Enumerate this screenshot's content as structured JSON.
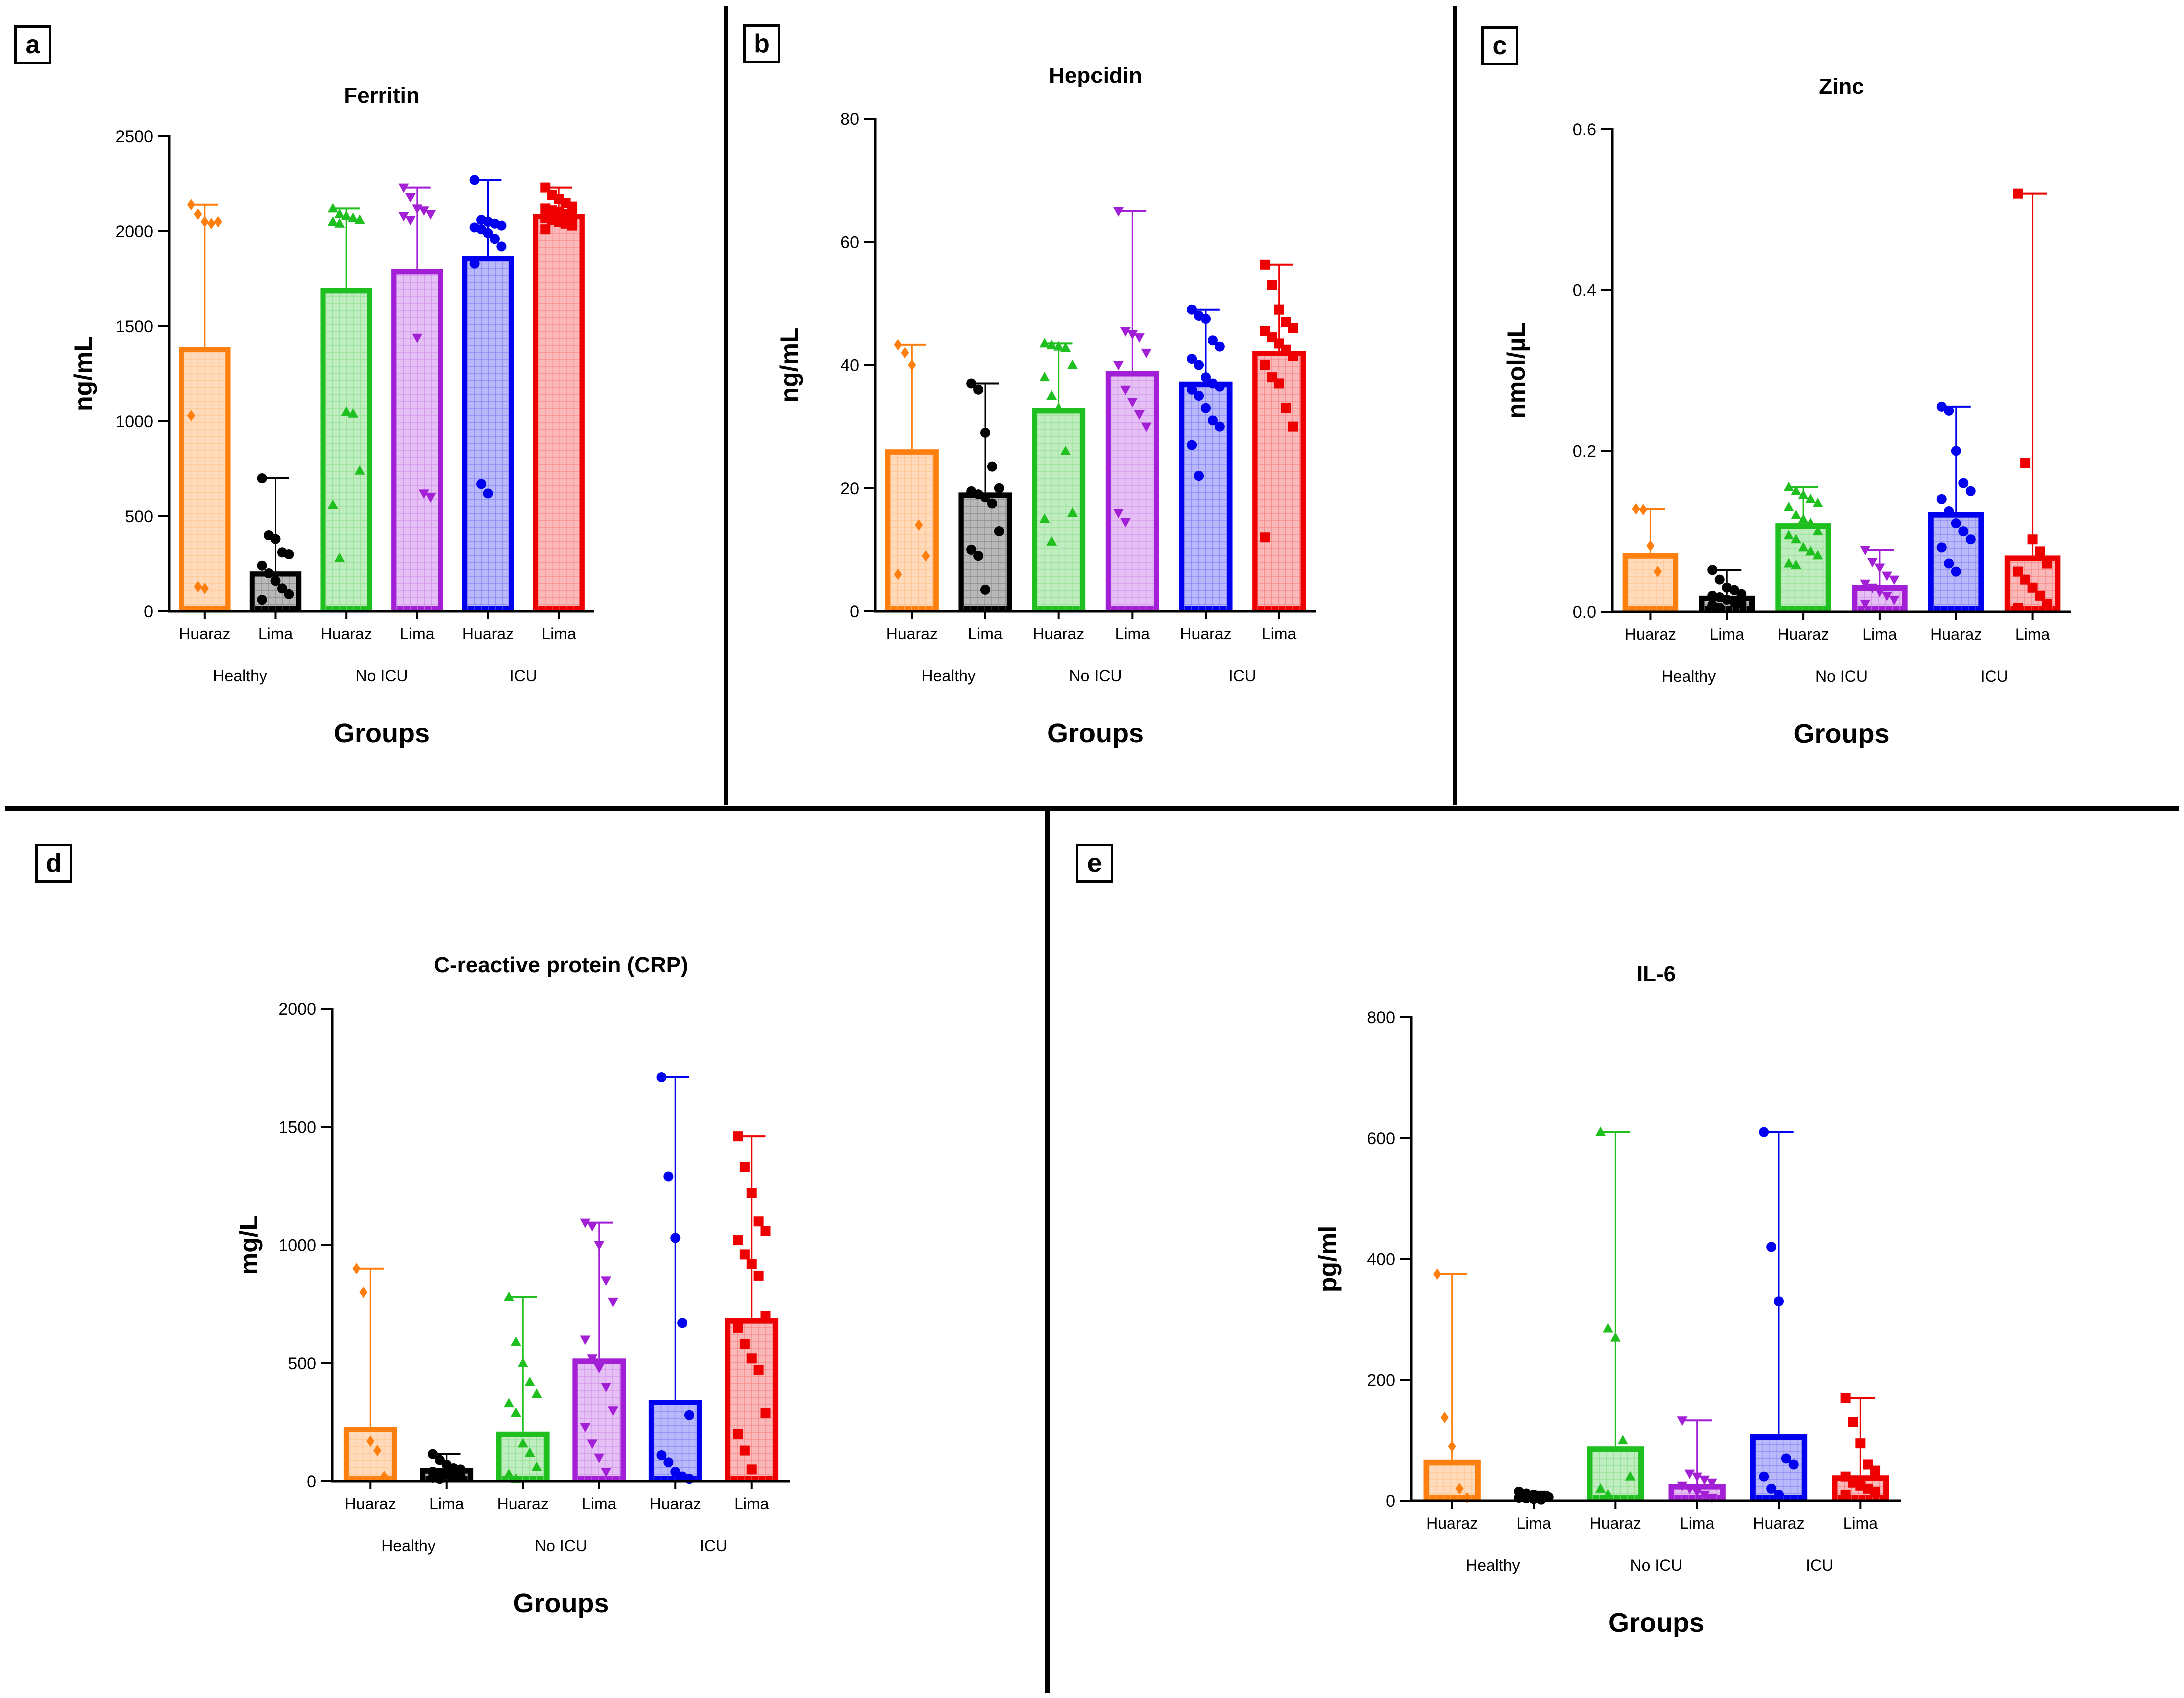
{
  "chart_data": [
    {
      "panel": "a",
      "type": "bar",
      "title": "Ferritin",
      "ylabel": "ng/mL",
      "xlabel": "Groups",
      "ylim": [
        0,
        2500
      ],
      "yticks": [
        0,
        500,
        1000,
        1500,
        2000,
        2500
      ],
      "yticklabels": [
        "0",
        "500",
        "1000",
        "1500",
        "2000",
        "2500"
      ],
      "categories": [
        "Huaraz",
        "Lima",
        "Huaraz",
        "Lima",
        "Huaraz",
        "Lima"
      ],
      "groups": [
        {
          "label": "Healthy",
          "span": [
            0,
            1
          ]
        },
        {
          "label": "No  ICU",
          "span": [
            2,
            3
          ]
        },
        {
          "label": "ICU",
          "span": [
            4,
            5
          ]
        }
      ],
      "colors": [
        "#ff7f0e",
        "#000000",
        "#1fbf1f",
        "#a31fd6",
        "#0000ee",
        "#ee0000"
      ],
      "markers": [
        "diamond",
        "circle",
        "triangle-up",
        "triangle-down",
        "circle",
        "square"
      ],
      "values": [
        1390,
        210,
        1700,
        1800,
        1870,
        2090
      ],
      "err_max": [
        2140,
        700,
        2120,
        2230,
        2270,
        2230
      ],
      "points": [
        [
          2140,
          2090,
          2050,
          2040,
          2050,
          1030,
          130,
          120
        ],
        [
          700,
          400,
          380,
          310,
          300,
          240,
          200,
          160,
          120,
          90,
          60
        ],
        [
          2120,
          2090,
          2080,
          2070,
          2060,
          2050,
          2040,
          1050,
          1040,
          740,
          560,
          280
        ],
        [
          2230,
          2180,
          2120,
          2110,
          2090,
          2080,
          2060,
          1440,
          620,
          600
        ],
        [
          2270,
          2060,
          2050,
          2040,
          2030,
          2020,
          2010,
          1990,
          1960,
          1920,
          1830,
          670,
          620
        ],
        [
          2230,
          2190,
          2170,
          2150,
          2130,
          2120,
          2110,
          2100,
          2090,
          2080,
          2070,
          2060,
          2050,
          2040,
          2030,
          2010
        ]
      ]
    },
    {
      "panel": "b",
      "type": "bar",
      "title": "Hepcidin",
      "ylabel": "ng/mL",
      "xlabel": "Groups",
      "ylim": [
        0,
        80
      ],
      "yticks": [
        0,
        20,
        40,
        60,
        80
      ],
      "yticklabels": [
        "0",
        "20",
        "40",
        "60",
        "80"
      ],
      "categories": [
        "Huaraz",
        "Lima",
        "Huaraz",
        "Lima",
        "Huaraz",
        "Lima"
      ],
      "groups": [
        {
          "label": "Healthy",
          "span": [
            0,
            1
          ]
        },
        {
          "label": "No  ICU",
          "span": [
            2,
            3
          ]
        },
        {
          "label": "ICU",
          "span": [
            4,
            5
          ]
        }
      ],
      "colors": [
        "#ff7f0e",
        "#000000",
        "#1fbf1f",
        "#a31fd6",
        "#0000ee",
        "#ee0000"
      ],
      "markers": [
        "diamond",
        "circle",
        "triangle-up",
        "triangle-down",
        "circle",
        "square"
      ],
      "values": [
        26.3,
        19.3,
        33,
        39,
        37.3,
        42.3
      ],
      "err_max": [
        43.3,
        37,
        43.5,
        65,
        49,
        56.3
      ],
      "points": [
        [
          43.3,
          42,
          40,
          14,
          9,
          6
        ],
        [
          37,
          36,
          29,
          23.5,
          20,
          19.5,
          19,
          18.5,
          17.5,
          13,
          10,
          9,
          3.5
        ],
        [
          43.5,
          43.2,
          43,
          42.8,
          40,
          38,
          35,
          33,
          26,
          16,
          15,
          11.3
        ],
        [
          65,
          45.5,
          45,
          44.5,
          42,
          40,
          36,
          34,
          32,
          30,
          16,
          14.5
        ],
        [
          49,
          48,
          47.5,
          44,
          43,
          41,
          40,
          38,
          37,
          36.5,
          36,
          35,
          33,
          31,
          30,
          27,
          22
        ],
        [
          56.3,
          53,
          49,
          47,
          46,
          45.5,
          44.5,
          43.5,
          42.5,
          41.5,
          40,
          38,
          37,
          33,
          30,
          12
        ]
      ]
    },
    {
      "panel": "c",
      "type": "bar",
      "title": "Zinc",
      "ylabel": "nmol/µL",
      "xlabel": "Groups",
      "ylim": [
        0,
        0.6
      ],
      "yticks": [
        0,
        0.2,
        0.4,
        0.6
      ],
      "yticklabels": [
        "0.0",
        "0.2",
        "0.4",
        "0.6"
      ],
      "categories": [
        "Huaraz",
        "Lima",
        "Huaraz",
        "Lima",
        "Huaraz",
        "Lima"
      ],
      "groups": [
        {
          "label": "Healthy",
          "span": [
            0,
            1
          ]
        },
        {
          "label": "No  ICU",
          "span": [
            2,
            3
          ]
        },
        {
          "label": "ICU",
          "span": [
            4,
            5
          ]
        }
      ],
      "colors": [
        "#ff7f0e",
        "#000000",
        "#1fbf1f",
        "#a31fd6",
        "#0000ee",
        "#ee0000"
      ],
      "markers": [
        "diamond",
        "circle",
        "triangle-up",
        "triangle-down",
        "circle",
        "square"
      ],
      "values": [
        0.073,
        0.02,
        0.11,
        0.033,
        0.124,
        0.07
      ],
      "err_max": [
        0.128,
        0.052,
        0.155,
        0.077,
        0.255,
        0.52
      ],
      "points": [
        [
          0.128,
          0.127,
          0.082,
          0.05
        ],
        [
          0.052,
          0.04,
          0.03,
          0.027,
          0.022,
          0.02,
          0.018,
          0.015,
          0.012,
          0.01,
          0.008,
          0.005
        ],
        [
          0.155,
          0.15,
          0.145,
          0.14,
          0.135,
          0.13,
          0.12,
          0.115,
          0.11,
          0.1,
          0.095,
          0.09,
          0.08,
          0.075,
          0.07,
          0.06,
          0.058
        ],
        [
          0.077,
          0.062,
          0.055,
          0.045,
          0.04,
          0.035,
          0.03,
          0.025,
          0.02,
          0.015,
          0.01
        ],
        [
          0.255,
          0.25,
          0.2,
          0.16,
          0.15,
          0.14,
          0.125,
          0.11,
          0.1,
          0.09,
          0.08,
          0.06,
          0.05
        ],
        [
          0.52,
          0.185,
          0.09,
          0.075,
          0.06,
          0.05,
          0.04,
          0.03,
          0.02,
          0.01,
          0.005
        ]
      ]
    },
    {
      "panel": "d",
      "type": "bar",
      "title": "C-reactive protein  (CRP)",
      "ylabel": "mg/L",
      "xlabel": "Groups",
      "ylim": [
        0,
        2000
      ],
      "yticks": [
        0,
        500,
        1000,
        1500,
        2000
      ],
      "yticklabels": [
        "0",
        "500",
        "1000",
        "1500",
        "2000"
      ],
      "categories": [
        "Huaraz",
        "Lima",
        "Huaraz",
        "Lima",
        "Huaraz",
        "Lima"
      ],
      "groups": [
        {
          "label": "Healthy",
          "span": [
            0,
            1
          ]
        },
        {
          "label": "No  ICU",
          "span": [
            2,
            3
          ]
        },
        {
          "label": "ICU",
          "span": [
            4,
            5
          ]
        }
      ],
      "colors": [
        "#ff7f0e",
        "#000000",
        "#1fbf1f",
        "#a31fd6",
        "#0000ee",
        "#ee0000"
      ],
      "markers": [
        "diamond",
        "circle",
        "triangle-up",
        "triangle-down",
        "circle",
        "square"
      ],
      "values": [
        230,
        55,
        210,
        520,
        345,
        690
      ],
      "err_max": [
        900,
        115,
        780,
        1095,
        1710,
        1460
      ],
      "points": [
        [
          900,
          800,
          170,
          130,
          20
        ],
        [
          115,
          90,
          70,
          55,
          50,
          40,
          35,
          30,
          25,
          20,
          15,
          10
        ],
        [
          780,
          590,
          500,
          420,
          370,
          330,
          290,
          160,
          120,
          60,
          30,
          10
        ],
        [
          1095,
          1080,
          1000,
          850,
          760,
          600,
          520,
          480,
          400,
          300,
          230,
          160,
          100,
          40
        ],
        [
          1710,
          1290,
          1030,
          670,
          280,
          110,
          80,
          40,
          20,
          10
        ],
        [
          1460,
          1330,
          1220,
          1100,
          1060,
          1020,
          960,
          920,
          870,
          700,
          650,
          580,
          520,
          470,
          290,
          200,
          130,
          50
        ]
      ]
    },
    {
      "panel": "e",
      "type": "bar",
      "title": "IL-6",
      "ylabel": "pg/ml",
      "xlabel": "Groups",
      "ylim": [
        0,
        800
      ],
      "yticks": [
        0,
        200,
        400,
        600,
        800
      ],
      "yticklabels": [
        "0",
        "200",
        "400",
        "600",
        "800"
      ],
      "categories": [
        "Huaraz",
        "Lima",
        "Huaraz",
        "Lima",
        "Huaraz",
        "Lima"
      ],
      "groups": [
        {
          "label": "Healthy",
          "span": [
            0,
            1
          ]
        },
        {
          "label": "No  ICU",
          "span": [
            2,
            3
          ]
        },
        {
          "label": "ICU",
          "span": [
            4,
            5
          ]
        }
      ],
      "colors": [
        "#ff7f0e",
        "#000000",
        "#1fbf1f",
        "#a31fd6",
        "#0000ee",
        "#ee0000"
      ],
      "markers": [
        "diamond",
        "circle",
        "triangle-up",
        "triangle-down",
        "circle",
        "square"
      ],
      "values": [
        68,
        8,
        90,
        28,
        110,
        42
      ],
      "err_max": [
        375,
        15,
        610,
        133,
        610,
        170
      ],
      "points": [
        [
          375,
          138,
          90,
          20,
          5
        ],
        [
          15,
          12,
          10,
          8,
          6,
          5,
          4,
          3,
          2
        ],
        [
          610,
          285,
          270,
          100,
          40,
          20,
          10
        ],
        [
          133,
          45,
          40,
          35,
          30,
          25,
          20,
          15,
          10,
          5
        ],
        [
          610,
          420,
          330,
          70,
          60,
          40,
          20,
          10
        ],
        [
          170,
          130,
          95,
          60,
          50,
          40,
          30,
          25,
          20,
          15,
          10
        ]
      ]
    }
  ]
}
